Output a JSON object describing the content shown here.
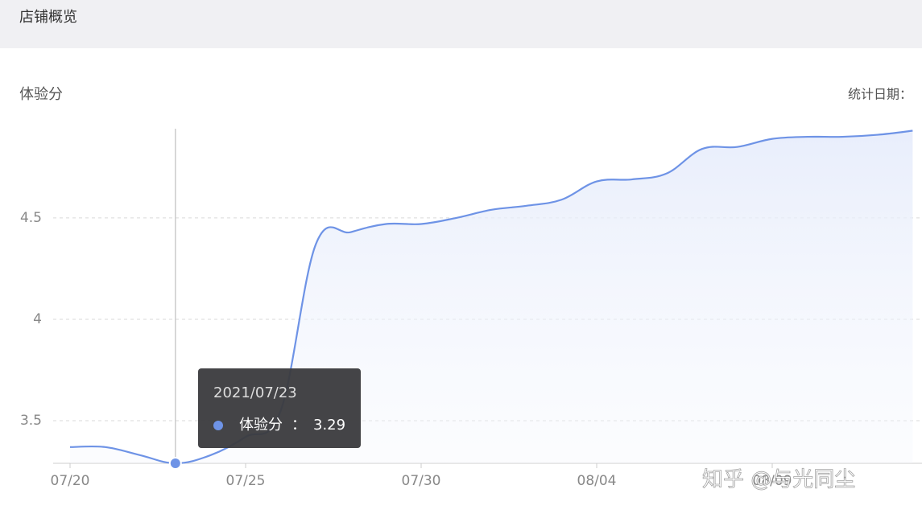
{
  "header": {
    "title": "店铺概览"
  },
  "chart_data": {
    "type": "line",
    "title": "体验分",
    "date_label": "统计日期：",
    "categories": [
      "07/20",
      null,
      null,
      null,
      null,
      "07/25",
      null,
      null,
      null,
      null,
      "07/30",
      null,
      null,
      null,
      null,
      "08/04",
      null,
      null,
      null,
      null,
      "08/09",
      null,
      null,
      null,
      null
    ],
    "series": [
      {
        "name": "体验分",
        "color": "#6e93e6",
        "values": [
          3.37,
          3.37,
          3.33,
          3.29,
          3.33,
          3.42,
          3.55,
          4.37,
          4.43,
          4.47,
          4.47,
          4.5,
          4.54,
          4.56,
          4.59,
          4.68,
          4.69,
          4.72,
          4.84,
          4.85,
          4.89,
          4.9,
          4.9,
          4.91,
          4.93
        ]
      }
    ],
    "ylim": [
      3.29,
      4.94
    ],
    "yticks": [
      3.5,
      4,
      4.5
    ],
    "grid": true,
    "tooltip": {
      "title": "2021/07/23",
      "separator": "：",
      "index": 3
    }
  },
  "watermark": "知乎 @与光同尘"
}
